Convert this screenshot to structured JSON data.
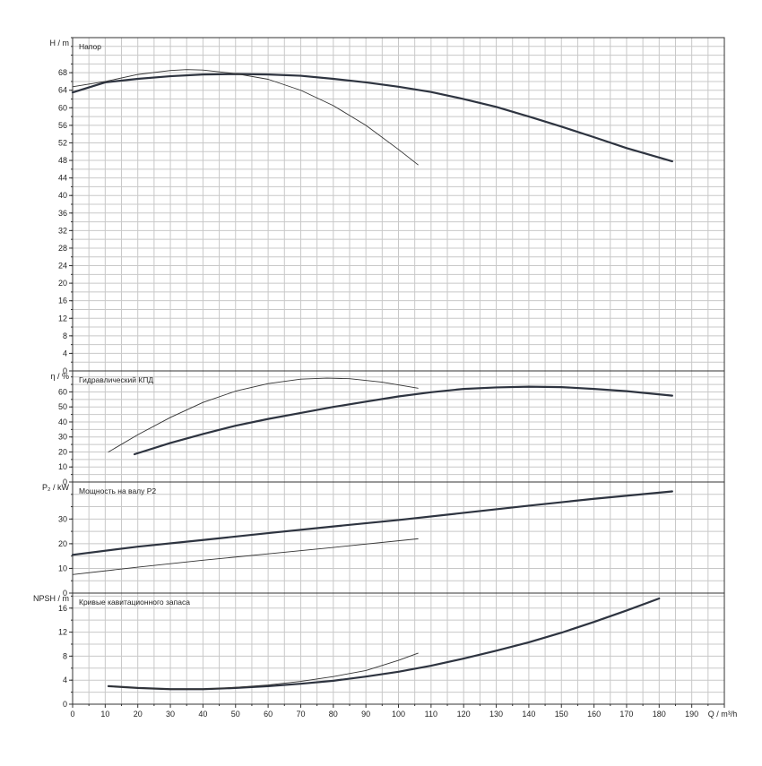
{
  "chart_data": [
    {
      "type": "line",
      "title": "Напор",
      "ylabel": "H / m",
      "ylim": [
        0,
        76
      ],
      "yticks": [
        0,
        4,
        8,
        12,
        16,
        20,
        24,
        28,
        32,
        36,
        40,
        44,
        48,
        52,
        56,
        60,
        64,
        68
      ],
      "xlim": [
        0,
        200
      ],
      "series": [
        {
          "values": [
            [
              0,
              63.5
            ],
            [
              10,
              65.8
            ],
            [
              20,
              66.6
            ],
            [
              30,
              67.2
            ],
            [
              40,
              67.6
            ],
            [
              50,
              67.7
            ],
            [
              60,
              67.6
            ],
            [
              70,
              67.3
            ],
            [
              80,
              66.6
            ],
            [
              90,
              65.8
            ],
            [
              100,
              64.8
            ],
            [
              110,
              63.6
            ],
            [
              120,
              62.0
            ],
            [
              130,
              60.2
            ],
            [
              140,
              58.0
            ],
            [
              150,
              55.7
            ],
            [
              160,
              53.3
            ],
            [
              170,
              50.8
            ],
            [
              184,
              47.8
            ]
          ]
        },
        {
          "values": [
            [
              0,
              64.8
            ],
            [
              10,
              66.0
            ],
            [
              20,
              67.6
            ],
            [
              30,
              68.5
            ],
            [
              35,
              68.7
            ],
            [
              40,
              68.6
            ],
            [
              50,
              67.8
            ],
            [
              60,
              66.5
            ],
            [
              70,
              64.0
            ],
            [
              80,
              60.5
            ],
            [
              90,
              56.0
            ],
            [
              100,
              50.5
            ],
            [
              106,
              47.0
            ]
          ]
        }
      ]
    },
    {
      "type": "line",
      "title": "Гидравлический КПД",
      "ylabel": "η / %",
      "ylim": [
        0,
        74
      ],
      "yticks": [
        0,
        10,
        20,
        30,
        40,
        50,
        60
      ],
      "xlim": [
        0,
        200
      ],
      "series": [
        {
          "values": [
            [
              19,
              18.5
            ],
            [
              30,
              26
            ],
            [
              40,
              32
            ],
            [
              50,
              37.5
            ],
            [
              60,
              42
            ],
            [
              70,
              46
            ],
            [
              80,
              50
            ],
            [
              90,
              53.5
            ],
            [
              100,
              57
            ],
            [
              110,
              59.8
            ],
            [
              120,
              62
            ],
            [
              130,
              63
            ],
            [
              140,
              63.5
            ],
            [
              150,
              63.2
            ],
            [
              160,
              62
            ],
            [
              170,
              60.5
            ],
            [
              184,
              57.5
            ]
          ]
        },
        {
          "values": [
            [
              11,
              20
            ],
            [
              20,
              31.5
            ],
            [
              30,
              43
            ],
            [
              40,
              53
            ],
            [
              50,
              60.5
            ],
            [
              60,
              65.5
            ],
            [
              70,
              68.5
            ],
            [
              78,
              69.2
            ],
            [
              85,
              68.8
            ],
            [
              95,
              66.5
            ],
            [
              106,
              62.5
            ]
          ]
        }
      ]
    },
    {
      "type": "line",
      "title": "Мощность на валу P2",
      "ylabel": "P₂ / kW",
      "ylim": [
        0,
        45
      ],
      "yticks": [
        0,
        10,
        20,
        30
      ],
      "xlim": [
        0,
        200
      ],
      "series": [
        {
          "values": [
            [
              0,
              15.5
            ],
            [
              20,
              18.8
            ],
            [
              40,
              21.5
            ],
            [
              60,
              24.3
            ],
            [
              80,
              27
            ],
            [
              100,
              29.6
            ],
            [
              120,
              32.5
            ],
            [
              140,
              35.4
            ],
            [
              160,
              38.2
            ],
            [
              184,
              41.2
            ]
          ]
        },
        {
          "values": [
            [
              0,
              7.5
            ],
            [
              20,
              10.5
            ],
            [
              40,
              13.3
            ],
            [
              60,
              15.9
            ],
            [
              80,
              18.5
            ],
            [
              106,
              22.0
            ]
          ]
        }
      ]
    },
    {
      "type": "line",
      "title": "Кривые кавитационного запаса",
      "ylabel": "NPSH / m",
      "ylim": [
        0,
        18.5
      ],
      "yticks": [
        0,
        4,
        8,
        12,
        16
      ],
      "xlim": [
        0,
        200
      ],
      "xlabel": "Q / m³/h",
      "xticks": [
        0,
        10,
        20,
        30,
        40,
        50,
        60,
        70,
        80,
        90,
        100,
        110,
        120,
        130,
        140,
        150,
        160,
        170,
        180,
        190
      ],
      "series": [
        {
          "values": [
            [
              11,
              3.0
            ],
            [
              20,
              2.7
            ],
            [
              30,
              2.5
            ],
            [
              40,
              2.5
            ],
            [
              50,
              2.7
            ],
            [
              60,
              3.0
            ],
            [
              70,
              3.4
            ],
            [
              80,
              3.9
            ],
            [
              90,
              4.6
            ],
            [
              100,
              5.4
            ],
            [
              110,
              6.4
            ],
            [
              120,
              7.6
            ],
            [
              130,
              8.9
            ],
            [
              140,
              10.3
            ],
            [
              150,
              11.9
            ],
            [
              160,
              13.7
            ],
            [
              170,
              15.6
            ],
            [
              180,
              17.6
            ]
          ]
        },
        {
          "values": [
            [
              11,
              3.0
            ],
            [
              20,
              2.7
            ],
            [
              30,
              2.5
            ],
            [
              40,
              2.5
            ],
            [
              50,
              2.8
            ],
            [
              60,
              3.2
            ],
            [
              70,
              3.8
            ],
            [
              80,
              4.6
            ],
            [
              90,
              5.6
            ],
            [
              100,
              7.3
            ],
            [
              106,
              8.5
            ]
          ]
        }
      ]
    }
  ]
}
